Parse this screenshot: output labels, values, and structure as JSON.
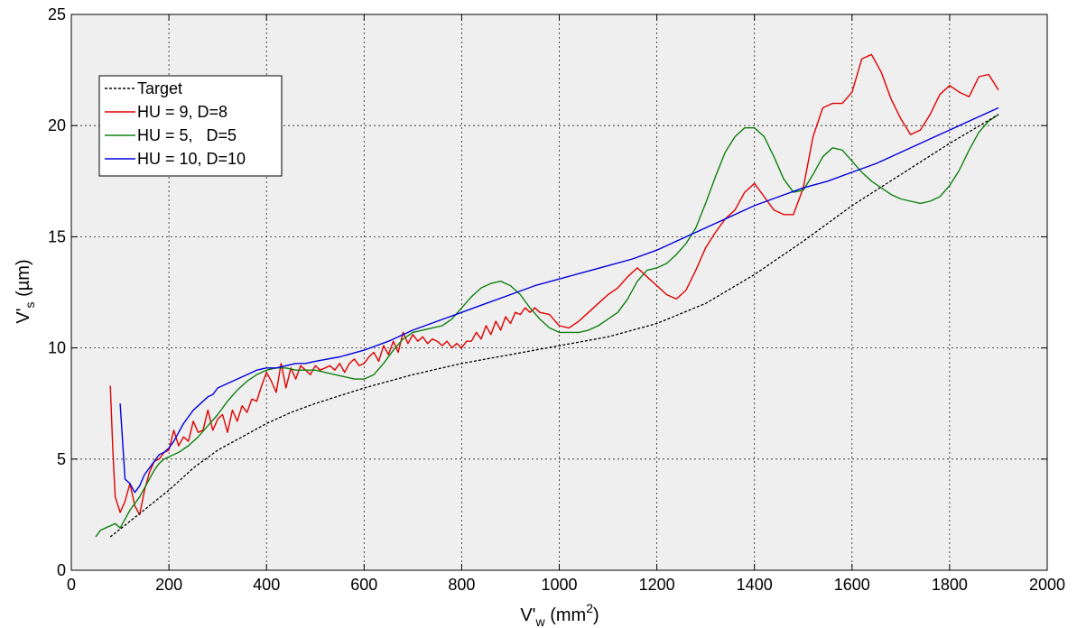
{
  "chart_data": {
    "type": "line",
    "xlabel": {
      "main": "V'",
      "sub": "w",
      "unit": " (mm",
      "sup": "2",
      "close": ")"
    },
    "ylabel": {
      "main": "V'",
      "sub": "s",
      "unit": " (µm)"
    },
    "xlim": [
      0,
      2000
    ],
    "ylim": [
      0,
      25
    ],
    "xticks": [
      "0",
      "200",
      "400",
      "600",
      "800",
      "1000",
      "1200",
      "1400",
      "1600",
      "1800",
      "2000"
    ],
    "yticks": [
      "0",
      "5",
      "10",
      "15",
      "20",
      "25"
    ],
    "grid": true,
    "legend_position": "upper-left",
    "background": "#efefef",
    "series": [
      {
        "name": "Target",
        "color": "#000000",
        "dash": true,
        "x": [
          80,
          120,
          160,
          200,
          250,
          300,
          350,
          400,
          450,
          500,
          600,
          700,
          800,
          900,
          1000,
          1100,
          1200,
          1300,
          1400,
          1500,
          1600,
          1700,
          1800,
          1900
        ],
        "y": [
          1.5,
          2.2,
          2.9,
          3.6,
          4.6,
          5.4,
          6.0,
          6.6,
          7.1,
          7.5,
          8.2,
          8.8,
          9.3,
          9.7,
          10.1,
          10.5,
          11.1,
          12.0,
          13.3,
          14.8,
          16.4,
          17.8,
          19.2,
          20.5
        ]
      },
      {
        "name": "HU = 9, D=8",
        "color": "#e00000",
        "x": [
          80,
          85,
          90,
          100,
          110,
          120,
          130,
          140,
          150,
          160,
          170,
          180,
          190,
          200,
          210,
          220,
          230,
          240,
          250,
          260,
          270,
          280,
          290,
          300,
          310,
          320,
          330,
          340,
          350,
          360,
          370,
          380,
          390,
          400,
          410,
          420,
          430,
          440,
          450,
          460,
          470,
          480,
          490,
          500,
          510,
          520,
          530,
          540,
          550,
          560,
          570,
          580,
          590,
          600,
          610,
          620,
          630,
          640,
          650,
          660,
          670,
          680,
          690,
          700,
          710,
          720,
          730,
          740,
          750,
          760,
          770,
          780,
          790,
          800,
          810,
          820,
          830,
          840,
          850,
          860,
          870,
          880,
          890,
          900,
          910,
          920,
          930,
          940,
          950,
          960,
          980,
          1000,
          1020,
          1040,
          1060,
          1080,
          1100,
          1120,
          1140,
          1160,
          1180,
          1200,
          1220,
          1240,
          1260,
          1280,
          1300,
          1320,
          1340,
          1360,
          1380,
          1400,
          1420,
          1440,
          1460,
          1480,
          1500,
          1520,
          1540,
          1560,
          1580,
          1600,
          1620,
          1640,
          1660,
          1680,
          1700,
          1720,
          1740,
          1760,
          1780,
          1800,
          1820,
          1840,
          1860,
          1880,
          1900
        ],
        "y": [
          8.3,
          5.5,
          3.3,
          2.6,
          3.1,
          3.9,
          2.9,
          2.5,
          3.6,
          4.4,
          4.9,
          5.0,
          5.3,
          5.4,
          6.3,
          5.6,
          6.0,
          5.8,
          6.7,
          6.2,
          6.3,
          7.2,
          6.3,
          6.8,
          7.0,
          6.2,
          7.2,
          6.7,
          7.4,
          7.1,
          7.7,
          7.6,
          8.3,
          8.9,
          8.5,
          8.0,
          9.3,
          8.2,
          9.1,
          8.6,
          9.2,
          9.0,
          8.8,
          9.2,
          9.0,
          9.1,
          9.2,
          9.0,
          9.3,
          8.9,
          9.3,
          9.5,
          9.2,
          9.3,
          9.6,
          9.8,
          9.4,
          10.1,
          9.7,
          10.3,
          9.8,
          10.7,
          10.2,
          10.6,
          10.3,
          10.5,
          10.2,
          10.4,
          10.3,
          10.1,
          10.3,
          10.0,
          10.2,
          10.0,
          10.3,
          10.3,
          10.7,
          10.4,
          11.0,
          10.6,
          11.2,
          10.8,
          11.4,
          11.1,
          11.6,
          11.5,
          11.8,
          11.6,
          11.8,
          11.6,
          11.5,
          11.0,
          10.9,
          11.2,
          11.6,
          12.0,
          12.4,
          12.7,
          13.2,
          13.6,
          13.2,
          12.8,
          12.4,
          12.2,
          12.6,
          13.5,
          14.5,
          15.2,
          15.8,
          16.2,
          17.0,
          17.4,
          16.8,
          16.2,
          16.0,
          16.0,
          17.2,
          19.5,
          20.8,
          21.0,
          21.0,
          21.5,
          23.0,
          23.2,
          22.4,
          21.2,
          20.3,
          19.6,
          19.8,
          20.5,
          21.4,
          21.8,
          21.5,
          21.3,
          22.2,
          22.3,
          21.6
        ]
      },
      {
        "name": "HU = 5,   D=5",
        "color": "#108010",
        "x": [
          50,
          60,
          70,
          80,
          90,
          100,
          110,
          120,
          130,
          140,
          150,
          160,
          170,
          180,
          190,
          200,
          220,
          240,
          260,
          280,
          300,
          320,
          340,
          360,
          380,
          400,
          420,
          440,
          460,
          480,
          500,
          520,
          540,
          560,
          580,
          600,
          620,
          640,
          660,
          680,
          700,
          720,
          740,
          760,
          780,
          800,
          820,
          840,
          860,
          880,
          900,
          920,
          940,
          960,
          980,
          1000,
          1020,
          1040,
          1060,
          1080,
          1100,
          1120,
          1140,
          1160,
          1180,
          1200,
          1220,
          1240,
          1260,
          1280,
          1300,
          1320,
          1340,
          1360,
          1380,
          1400,
          1420,
          1440,
          1460,
          1480,
          1500,
          1520,
          1540,
          1560,
          1580,
          1600,
          1620,
          1640,
          1660,
          1680,
          1700,
          1720,
          1740,
          1760,
          1780,
          1800,
          1820,
          1840,
          1860,
          1880,
          1900
        ],
        "y": [
          1.5,
          1.8,
          1.9,
          2.0,
          2.1,
          1.9,
          2.3,
          2.7,
          3.0,
          3.3,
          3.7,
          4.1,
          4.5,
          4.8,
          5.0,
          5.1,
          5.3,
          5.6,
          6.0,
          6.5,
          7.0,
          7.6,
          8.1,
          8.5,
          8.8,
          9.0,
          9.1,
          9.1,
          9.0,
          9.0,
          9.0,
          8.9,
          8.8,
          8.7,
          8.6,
          8.6,
          8.8,
          9.3,
          9.9,
          10.4,
          10.7,
          10.8,
          10.9,
          11.0,
          11.3,
          11.8,
          12.3,
          12.7,
          12.9,
          13.0,
          12.8,
          12.4,
          11.8,
          11.3,
          10.9,
          10.7,
          10.7,
          10.7,
          10.8,
          11.0,
          11.3,
          11.6,
          12.2,
          13.0,
          13.5,
          13.6,
          13.8,
          14.2,
          14.7,
          15.4,
          16.5,
          17.7,
          18.8,
          19.5,
          19.9,
          19.9,
          19.5,
          18.6,
          17.6,
          17.0,
          17.1,
          17.8,
          18.6,
          19.0,
          18.9,
          18.4,
          17.9,
          17.5,
          17.2,
          16.9,
          16.7,
          16.6,
          16.5,
          16.6,
          16.8,
          17.3,
          18.0,
          18.9,
          19.7,
          20.2,
          20.5
        ]
      },
      {
        "name": "HU = 10, D=10",
        "color": "#0000e0",
        "x": [
          100,
          110,
          120,
          130,
          140,
          150,
          160,
          170,
          180,
          190,
          200,
          210,
          220,
          230,
          240,
          250,
          260,
          270,
          280,
          290,
          300,
          320,
          340,
          360,
          380,
          400,
          420,
          440,
          460,
          480,
          500,
          550,
          600,
          650,
          700,
          750,
          800,
          850,
          900,
          950,
          1000,
          1050,
          1100,
          1150,
          1200,
          1250,
          1300,
          1350,
          1400,
          1450,
          1500,
          1550,
          1600,
          1650,
          1700,
          1750,
          1800,
          1850,
          1900
        ],
        "y": [
          7.5,
          4.1,
          3.9,
          3.5,
          3.8,
          4.3,
          4.6,
          4.9,
          5.2,
          5.3,
          5.5,
          5.8,
          6.2,
          6.6,
          6.9,
          7.2,
          7.4,
          7.6,
          7.8,
          7.9,
          8.2,
          8.4,
          8.6,
          8.8,
          9.0,
          9.1,
          9.1,
          9.2,
          9.3,
          9.3,
          9.4,
          9.6,
          9.9,
          10.3,
          10.8,
          11.2,
          11.6,
          12.0,
          12.4,
          12.8,
          13.1,
          13.4,
          13.7,
          14.0,
          14.4,
          14.9,
          15.4,
          15.9,
          16.4,
          16.8,
          17.2,
          17.5,
          17.9,
          18.3,
          18.8,
          19.3,
          19.8,
          20.3,
          20.8
        ]
      }
    ]
  }
}
